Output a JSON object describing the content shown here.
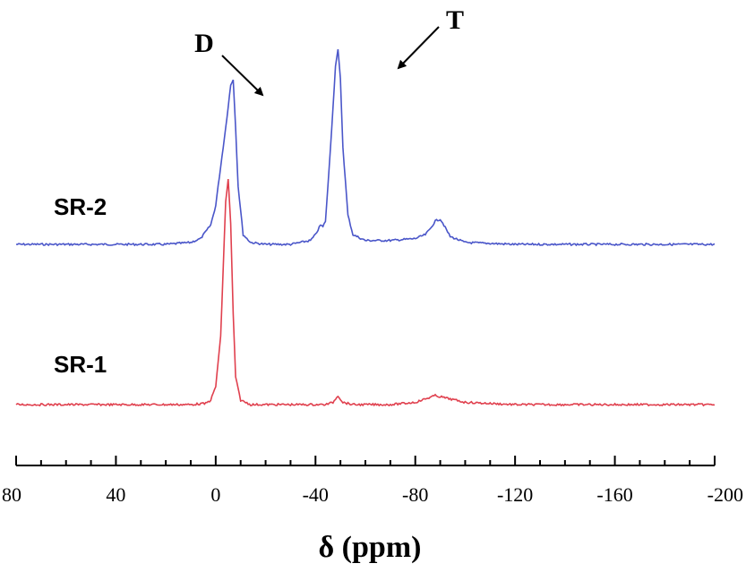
{
  "chart_data": {
    "type": "line",
    "title": "",
    "xlabel": "δ (ppm)",
    "ylabel": "",
    "xlim": [
      80,
      -200
    ],
    "x_reversed": true,
    "x_ticks": [
      80,
      40,
      0,
      -40,
      -80,
      -120,
      -160,
      -200
    ],
    "x_tick_labels": [
      "80",
      "40",
      "0",
      "-40",
      "-80",
      "-120",
      "-160",
      "-200"
    ],
    "grid": false,
    "legend": "none",
    "series": [
      {
        "name": "SR-2",
        "color": "#4a56c9",
        "offset": 1,
        "values": [
          [
            80,
            0
          ],
          [
            70,
            0
          ],
          [
            60,
            0
          ],
          [
            50,
            0
          ],
          [
            40,
            0
          ],
          [
            30,
            0
          ],
          [
            20,
            0
          ],
          [
            15,
            0.005
          ],
          [
            10,
            0.01
          ],
          [
            6,
            0.03
          ],
          [
            2,
            0.1
          ],
          [
            0,
            0.2
          ],
          [
            -2,
            0.4
          ],
          [
            -4,
            0.6
          ],
          [
            -6,
            0.82
          ],
          [
            -7,
            0.85
          ],
          [
            -8,
            0.6
          ],
          [
            -9,
            0.3
          ],
          [
            -11,
            0.05
          ],
          [
            -14,
            0.01
          ],
          [
            -20,
            0
          ],
          [
            -30,
            0
          ],
          [
            -38,
            0.02
          ],
          [
            -40,
            0.05
          ],
          [
            -42,
            0.1
          ],
          [
            -43,
            0.09
          ],
          [
            -44,
            0.12
          ],
          [
            -45,
            0.3
          ],
          [
            -47,
            0.7
          ],
          [
            -48,
            0.92
          ],
          [
            -49,
            1.0
          ],
          [
            -50,
            0.85
          ],
          [
            -51,
            0.5
          ],
          [
            -53,
            0.15
          ],
          [
            -55,
            0.05
          ],
          [
            -60,
            0.02
          ],
          [
            -70,
            0.02
          ],
          [
            -80,
            0.03
          ],
          [
            -84,
            0.05
          ],
          [
            -86,
            0.08
          ],
          [
            -88,
            0.12
          ],
          [
            -90,
            0.13
          ],
          [
            -91,
            0.11
          ],
          [
            -94,
            0.04
          ],
          [
            -100,
            0.01
          ],
          [
            -120,
            0
          ],
          [
            -140,
            0
          ],
          [
            -160,
            0
          ],
          [
            -180,
            0
          ],
          [
            -200,
            0
          ]
        ]
      },
      {
        "name": "SR-1",
        "color": "#e0404e",
        "offset": 0,
        "values": [
          [
            80,
            0
          ],
          [
            60,
            0
          ],
          [
            40,
            0
          ],
          [
            20,
            0
          ],
          [
            10,
            0
          ],
          [
            4,
            0.005
          ],
          [
            2,
            0.02
          ],
          [
            0,
            0.08
          ],
          [
            -2,
            0.3
          ],
          [
            -3,
            0.6
          ],
          [
            -4,
            0.9
          ],
          [
            -5,
            1.0
          ],
          [
            -6,
            0.8
          ],
          [
            -7,
            0.4
          ],
          [
            -8,
            0.12
          ],
          [
            -10,
            0.02
          ],
          [
            -14,
            0
          ],
          [
            -30,
            0
          ],
          [
            -44,
            0
          ],
          [
            -47,
            0.01
          ],
          [
            -49,
            0.04
          ],
          [
            -51,
            0.01
          ],
          [
            -55,
            0
          ],
          [
            -70,
            0
          ],
          [
            -80,
            0.01
          ],
          [
            -88,
            0.04
          ],
          [
            -92,
            0.03
          ],
          [
            -100,
            0.01
          ],
          [
            -120,
            0
          ],
          [
            -140,
            0
          ],
          [
            -160,
            0
          ],
          [
            -180,
            0
          ],
          [
            -200,
            0
          ]
        ]
      }
    ],
    "annotations": [
      {
        "text": "D",
        "x": -7
      },
      {
        "text": "T",
        "x": -49
      }
    ]
  }
}
